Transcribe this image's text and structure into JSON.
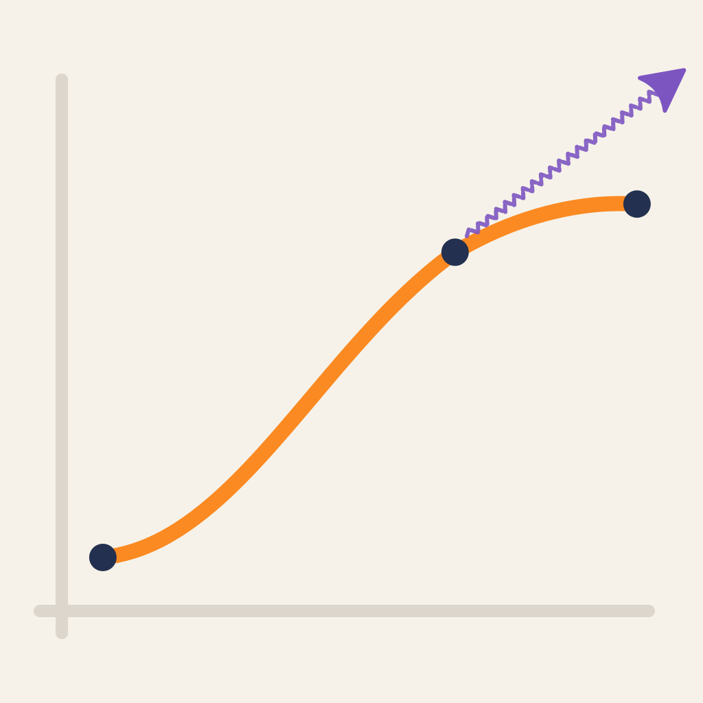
{
  "chart_data": {
    "type": "line",
    "title": "",
    "xlabel": "",
    "ylabel": "",
    "grid": false,
    "legend": "none",
    "xlim": [
      0,
      10
    ],
    "ylim": [
      0,
      10
    ],
    "series": [
      {
        "color": "#fb8a22",
        "curve": "smooth",
        "points": [
          {
            "x": 0.7,
            "y": 1.0
          },
          {
            "x": 6.7,
            "y": 6.7
          },
          {
            "x": 9.8,
            "y": 7.6
          }
        ]
      }
    ],
    "marker_color": "#23304f",
    "trend_arrow": {
      "color": "#7d55c1",
      "from": {
        "x": 6.9,
        "y": 7.0
      },
      "to": {
        "x": 10.6,
        "y": 10.1
      }
    },
    "axis_color": "#ddd6cc"
  }
}
